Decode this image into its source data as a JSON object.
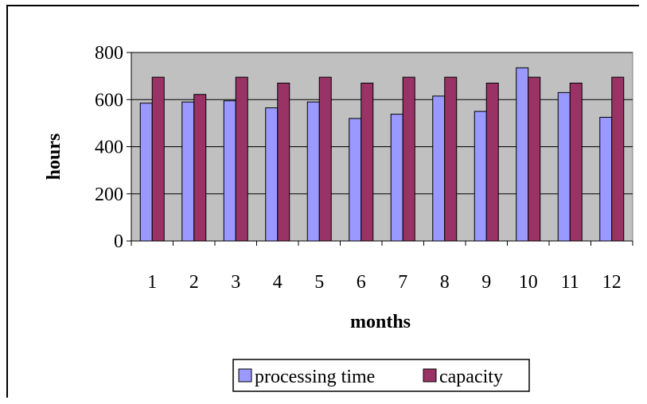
{
  "chart_data": {
    "type": "bar",
    "categories": [
      "1",
      "2",
      "3",
      "4",
      "5",
      "6",
      "7",
      "8",
      "9",
      "10",
      "11",
      "12"
    ],
    "series": [
      {
        "name": "processing time",
        "values": [
          585,
          590,
          595,
          565,
          590,
          520,
          538,
          615,
          550,
          735,
          630,
          525
        ]
      },
      {
        "name": "capacity",
        "values": [
          695,
          622,
          695,
          670,
          695,
          670,
          695,
          695,
          670,
          695,
          670,
          695
        ]
      }
    ],
    "title": "",
    "xlabel": "months",
    "ylabel": "hours",
    "ylim": [
      0,
      800
    ],
    "yticks": [
      "0",
      "200",
      "400",
      "600",
      "800"
    ],
    "grid": true,
    "legend_position": "bottom",
    "colors": {
      "plot_background": "#C0C0C0",
      "processing_time": "#9999FF",
      "capacity": "#993366"
    }
  }
}
